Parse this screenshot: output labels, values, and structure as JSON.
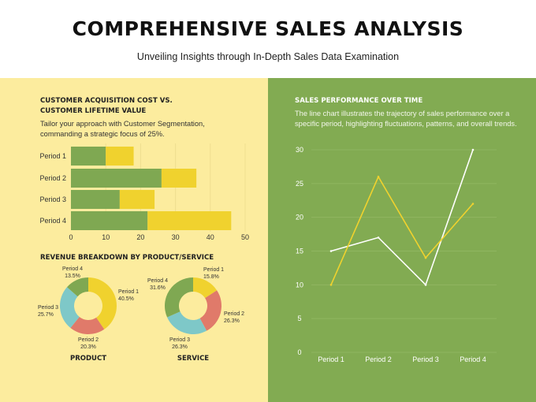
{
  "title": "COMPREHENSIVE SALES ANALYSIS",
  "subtitle": "Unveiling Insights through In-Depth Sales Data Examination",
  "colors": {
    "left_bg": "#fcec9e",
    "right_bg": "#82ab52",
    "green": "#7fa852",
    "yellow": "#f0d22e",
    "red": "#e07a6a",
    "teal": "#7ec8c8"
  },
  "left": {
    "bar_heading_1": "CUSTOMER ACQUISITION COST VS.",
    "bar_heading_2": "CUSTOMER LIFETIME VALUE",
    "bar_desc_1": "Tailor your approach with Customer Segmentation,",
    "bar_desc_2": "commanding a strategic focus of 25%.",
    "donut_heading": "REVENUE BREAKDOWN BY PRODUCT/SERVICE"
  },
  "right": {
    "heading": "SALES PERFORMANCE OVER TIME",
    "desc_1": "The line chart illustrates the trajectory of sales performance over a",
    "desc_2": "specific period, highlighting fluctuations, patterns, and overall trends."
  },
  "chart_data": [
    {
      "type": "bar",
      "orientation": "horizontal",
      "stacked": true,
      "categories": [
        "Period 1",
        "Period 2",
        "Period 3",
        "Period 4"
      ],
      "series": [
        {
          "values": [
            10,
            26,
            14,
            22
          ],
          "color": "#7fa852"
        },
        {
          "values": [
            8,
            10,
            10,
            24
          ],
          "color": "#f0d22e"
        }
      ],
      "xlim": [
        0,
        50
      ],
      "xticks": [
        0,
        10,
        20,
        30,
        40,
        50
      ],
      "grid": true
    },
    {
      "type": "pie",
      "donut": true,
      "label": "PRODUCT",
      "categories": [
        "Period 1",
        "Period 2",
        "Period 3",
        "Period 4"
      ],
      "values": [
        40.5,
        20.3,
        25.7,
        13.5
      ],
      "labels": [
        "40.5%",
        "20.3%",
        "25.7%",
        "13.5%"
      ]
    },
    {
      "type": "pie",
      "donut": true,
      "label": "SERVICE",
      "categories": [
        "Period 1",
        "Period 2",
        "Period 3",
        "Period 4"
      ],
      "values": [
        15.8,
        26.3,
        26.3,
        31.6
      ],
      "labels": [
        "15.8%",
        "26.3%",
        "26.3%",
        "31.6%"
      ]
    },
    {
      "type": "line",
      "categories": [
        "Period 1",
        "Period 2",
        "Period 3",
        "Period 4"
      ],
      "series": [
        {
          "values": [
            15,
            17,
            10,
            30
          ],
          "color": "#ffffff"
        },
        {
          "values": [
            10,
            26,
            14,
            22
          ],
          "color": "#f0d22e"
        }
      ],
      "ylim": [
        0,
        30
      ],
      "yticks": [
        0,
        5,
        10,
        15,
        20,
        25,
        30
      ],
      "grid": true
    }
  ]
}
